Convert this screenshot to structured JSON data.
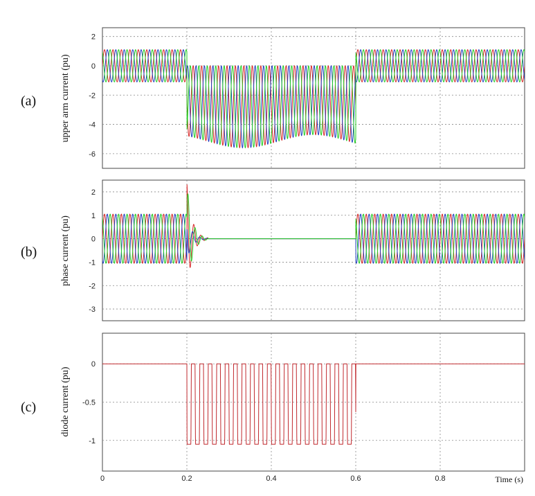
{
  "chart_data": [
    {
      "type": "line",
      "panel_label": "(a)",
      "ylabel": "upper arm current (pu)",
      "xlim": [
        0,
        1.0
      ],
      "ylim": [
        -7,
        2.6
      ],
      "yticks": [
        "2",
        "0",
        "-2",
        "-4",
        "-6"
      ],
      "ytick_values": [
        2,
        0,
        -2,
        -4,
        -6
      ],
      "grid": true,
      "series": [
        {
          "color": "#d62728",
          "phase_deg": 0
        },
        {
          "color": "#1f3fbf",
          "phase_deg": 120
        },
        {
          "color": "#22cc22",
          "phase_deg": 240
        }
      ],
      "segments": [
        {
          "t_start": 0.0,
          "t_end": 0.2,
          "waveform": "sine",
          "amplitude": 1.1,
          "offset": 0
        },
        {
          "t_start": 0.2,
          "t_end": 0.6,
          "waveform": "rectified",
          "peak": -5.6,
          "offset": 0
        },
        {
          "t_start": 0.6,
          "t_end": 1.0,
          "waveform": "sine",
          "amplitude": 1.1,
          "offset": 0
        }
      ],
      "frequency_hz": 50
    },
    {
      "type": "line",
      "panel_label": "(b)",
      "ylabel": "phase current (pu)",
      "xlim": [
        0,
        1.0
      ],
      "ylim": [
        -3.5,
        2.5
      ],
      "yticks": [
        "2",
        "1",
        "0",
        "-1",
        "-2",
        "-3"
      ],
      "ytick_values": [
        2,
        1,
        0,
        -1,
        -2,
        -3
      ],
      "grid": true,
      "series": [
        {
          "color": "#d62728",
          "phase_deg": 0
        },
        {
          "color": "#1f3fbf",
          "phase_deg": 120
        },
        {
          "color": "#22cc22",
          "phase_deg": 240
        }
      ],
      "segments": [
        {
          "t_start": 0.0,
          "t_end": 0.2,
          "waveform": "sine",
          "amplitude": 1.05
        },
        {
          "t_start": 0.2,
          "t_end": 0.25,
          "waveform": "decay",
          "peak": 2.4
        },
        {
          "t_start": 0.25,
          "t_end": 0.6,
          "waveform": "zero"
        },
        {
          "t_start": 0.6,
          "t_end": 1.0,
          "waveform": "sine",
          "amplitude": 1.05
        }
      ],
      "frequency_hz": 50
    },
    {
      "type": "line",
      "panel_label": "(c)",
      "ylabel": "diode current (pu)",
      "xlabel": "Time (s)",
      "xlim": [
        0,
        1.0
      ],
      "ylim": [
        -1.4,
        0.4
      ],
      "yticks": [
        "0",
        "-0.5",
        "-1"
      ],
      "ytick_values": [
        0,
        -0.5,
        -1
      ],
      "xticks": [
        "0",
        "0.2",
        "0.4",
        "0.6",
        "0.8"
      ],
      "xtick_values": [
        0,
        0.2,
        0.4,
        0.6,
        0.8
      ],
      "grid": true,
      "series": [
        {
          "color": "#c0282d"
        }
      ],
      "segments": [
        {
          "t_start": 0.0,
          "t_end": 0.2,
          "waveform": "zero"
        },
        {
          "t_start": 0.2,
          "t_end": 0.6,
          "waveform": "diode",
          "peak": -1.05
        },
        {
          "t_start": 0.6,
          "t_end": 1.0,
          "waveform": "zero"
        }
      ],
      "frequency_hz": 50
    }
  ]
}
